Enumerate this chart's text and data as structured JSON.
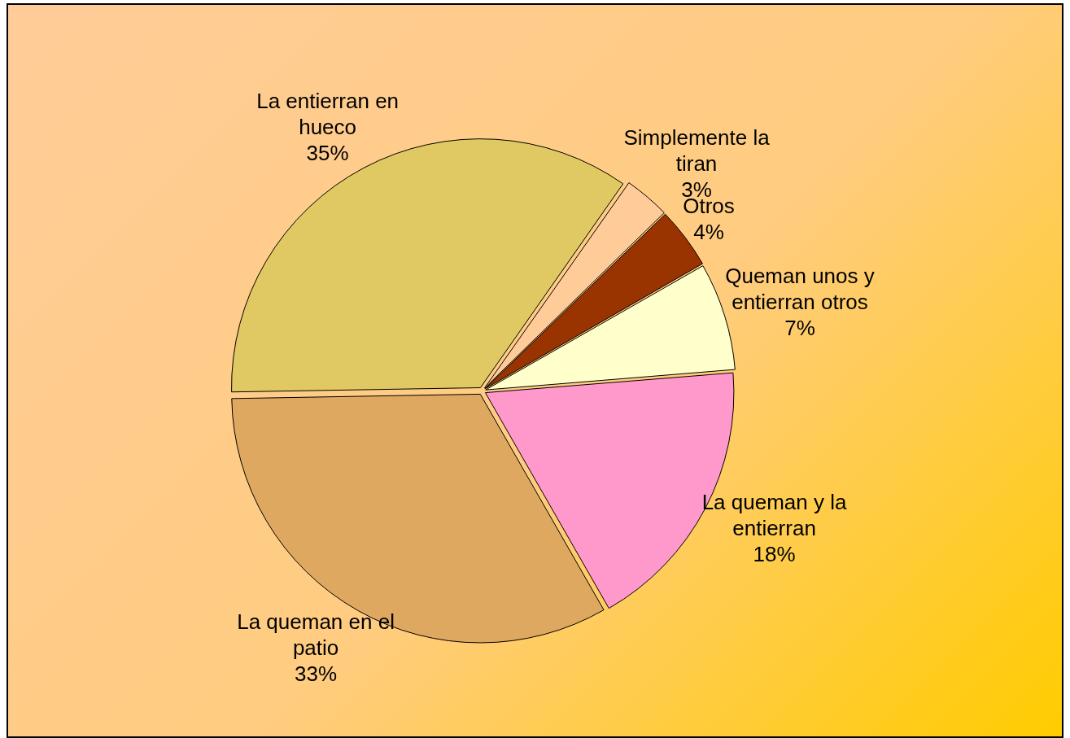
{
  "chart_data": {
    "type": "pie",
    "categories": [
      "Simplemente la tiran",
      "Otros",
      "Queman unos y entierran otros",
      "La queman y la entierran",
      "La queman en el patio",
      "La entierran en hueco"
    ],
    "values": [
      3,
      4,
      7,
      18,
      33,
      35
    ],
    "colors": [
      "#ffcc99",
      "#993300",
      "#ffffcc",
      "#ff99cc",
      "#dea860",
      "#e0c862"
    ],
    "value_labels": [
      "3%",
      "4%",
      "7%",
      "18%",
      "33%",
      "35%"
    ],
    "legend": false
  }
}
